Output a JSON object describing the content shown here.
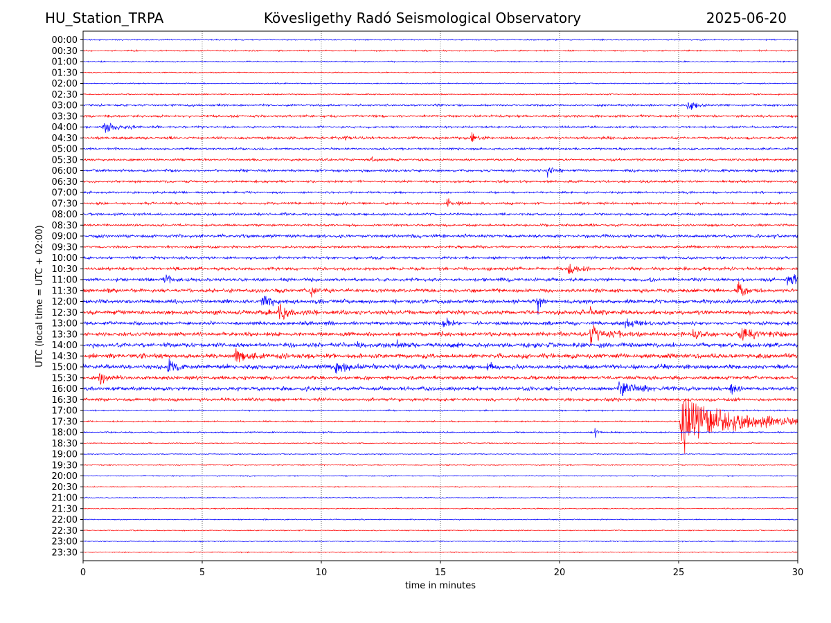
{
  "header": {
    "station": "HU_Station_TRPA",
    "observatory": "Kövesligethy Radó Seismological Observatory",
    "date": "2025-06-20"
  },
  "chart_data": {
    "type": "line",
    "title": "Kövesligethy Radó Seismological Observatory",
    "xlabel": "time in minutes",
    "ylabel": "UTC (local time = UTC + 02:00)",
    "xlim": [
      0,
      30
    ],
    "x_ticks": [
      "0",
      "5",
      "10",
      "15",
      "20",
      "25",
      "30"
    ],
    "vertical_gridlines_at": [
      5,
      10,
      15,
      20,
      25
    ],
    "grid": "vertical-dotted",
    "row_labels": [
      "00:00",
      "00:30",
      "01:00",
      "01:30",
      "02:00",
      "02:30",
      "03:00",
      "03:30",
      "04:00",
      "04:30",
      "05:00",
      "05:30",
      "06:00",
      "06:30",
      "07:00",
      "07:30",
      "08:00",
      "08:30",
      "09:00",
      "09:30",
      "10:00",
      "10:30",
      "11:00",
      "11:30",
      "12:00",
      "12:30",
      "13:00",
      "13:30",
      "14:00",
      "14:30",
      "15:00",
      "15:30",
      "16:00",
      "16:30",
      "17:00",
      "17:30",
      "18:00",
      "18:30",
      "19:00",
      "19:30",
      "20:00",
      "20:30",
      "21:00",
      "21:30",
      "22:00",
      "22:30",
      "23:00",
      "23:30"
    ],
    "trace_colors": [
      "#0000ff",
      "#ff0000"
    ],
    "noise_levels": [
      0.5,
      0.6,
      0.5,
      0.45,
      0.5,
      0.55,
      0.9,
      1.0,
      0.9,
      1.1,
      0.9,
      1.0,
      1.1,
      1.0,
      0.9,
      1.0,
      1.1,
      1.0,
      1.4,
      1.1,
      1.2,
      1.4,
      1.5,
      1.6,
      1.7,
      1.9,
      1.6,
      1.8,
      2.0,
      2.0,
      2.0,
      1.6,
      1.7,
      1.4,
      0.6,
      0.6,
      0.6,
      0.45,
      0.45,
      0.45,
      0.45,
      0.45,
      0.45,
      0.45,
      0.45,
      0.45,
      0.45,
      0.45
    ],
    "events": [
      {
        "row": 8,
        "minute": 0.9,
        "amplitude": 7,
        "duration": 1.2
      },
      {
        "row": 6,
        "minute": 25.4,
        "amplitude": 6,
        "duration": 0.6
      },
      {
        "row": 9,
        "minute": 16.3,
        "amplitude": 6,
        "duration": 0.5
      },
      {
        "row": 9,
        "minute": 11.0,
        "amplitude": 4,
        "duration": 0.4
      },
      {
        "row": 11,
        "minute": 12.1,
        "amplitude": 4,
        "duration": 0.4
      },
      {
        "row": 12,
        "minute": 19.5,
        "amplitude": 5,
        "duration": 0.8
      },
      {
        "row": 15,
        "minute": 15.3,
        "amplitude": 5,
        "duration": 0.6
      },
      {
        "row": 21,
        "minute": 20.4,
        "amplitude": 6,
        "duration": 0.7
      },
      {
        "row": 22,
        "minute": 3.4,
        "amplitude": 5,
        "duration": 0.8
      },
      {
        "row": 22,
        "minute": 29.6,
        "amplitude": 7,
        "duration": 0.8
      },
      {
        "row": 23,
        "minute": 9.6,
        "amplitude": 7,
        "duration": 0.4
      },
      {
        "row": 23,
        "minute": 27.5,
        "amplitude": 6,
        "duration": 0.6
      },
      {
        "row": 24,
        "minute": 7.5,
        "amplitude": 8,
        "duration": 0.8
      },
      {
        "row": 24,
        "minute": 19.1,
        "amplitude": 9,
        "duration": 0.2
      },
      {
        "row": 25,
        "minute": 8.2,
        "amplitude": 9,
        "duration": 0.9
      },
      {
        "row": 25,
        "minute": 21.3,
        "amplitude": 5,
        "duration": 0.5
      },
      {
        "row": 26,
        "minute": 15.1,
        "amplitude": 8,
        "duration": 0.5
      },
      {
        "row": 26,
        "minute": 22.7,
        "amplitude": 6,
        "duration": 0.8
      },
      {
        "row": 27,
        "minute": 21.3,
        "amplitude": 10,
        "duration": 1.2
      },
      {
        "row": 27,
        "minute": 25.6,
        "amplitude": 7,
        "duration": 0.6
      },
      {
        "row": 27,
        "minute": 27.6,
        "amplitude": 8,
        "duration": 1.4
      },
      {
        "row": 28,
        "minute": 11.5,
        "amplitude": 5,
        "duration": 0.5
      },
      {
        "row": 28,
        "minute": 13.2,
        "amplitude": 6,
        "duration": 0.5
      },
      {
        "row": 29,
        "minute": 6.4,
        "amplitude": 6,
        "duration": 1.6
      },
      {
        "row": 30,
        "minute": 3.6,
        "amplitude": 7,
        "duration": 0.6
      },
      {
        "row": 30,
        "minute": 10.6,
        "amplitude": 5,
        "duration": 1.2
      },
      {
        "row": 30,
        "minute": 17.0,
        "amplitude": 5,
        "duration": 0.4
      },
      {
        "row": 31,
        "minute": 0.7,
        "amplitude": 6,
        "duration": 0.6
      },
      {
        "row": 32,
        "minute": 22.5,
        "amplitude": 6,
        "duration": 1.5
      },
      {
        "row": 32,
        "minute": 27.2,
        "amplitude": 9,
        "duration": 0.3
      },
      {
        "row": 35,
        "minute": 25.1,
        "amplitude": 30,
        "duration": 4.5
      },
      {
        "row": 36,
        "minute": 21.5,
        "amplitude": 5,
        "duration": 0.2
      }
    ]
  }
}
